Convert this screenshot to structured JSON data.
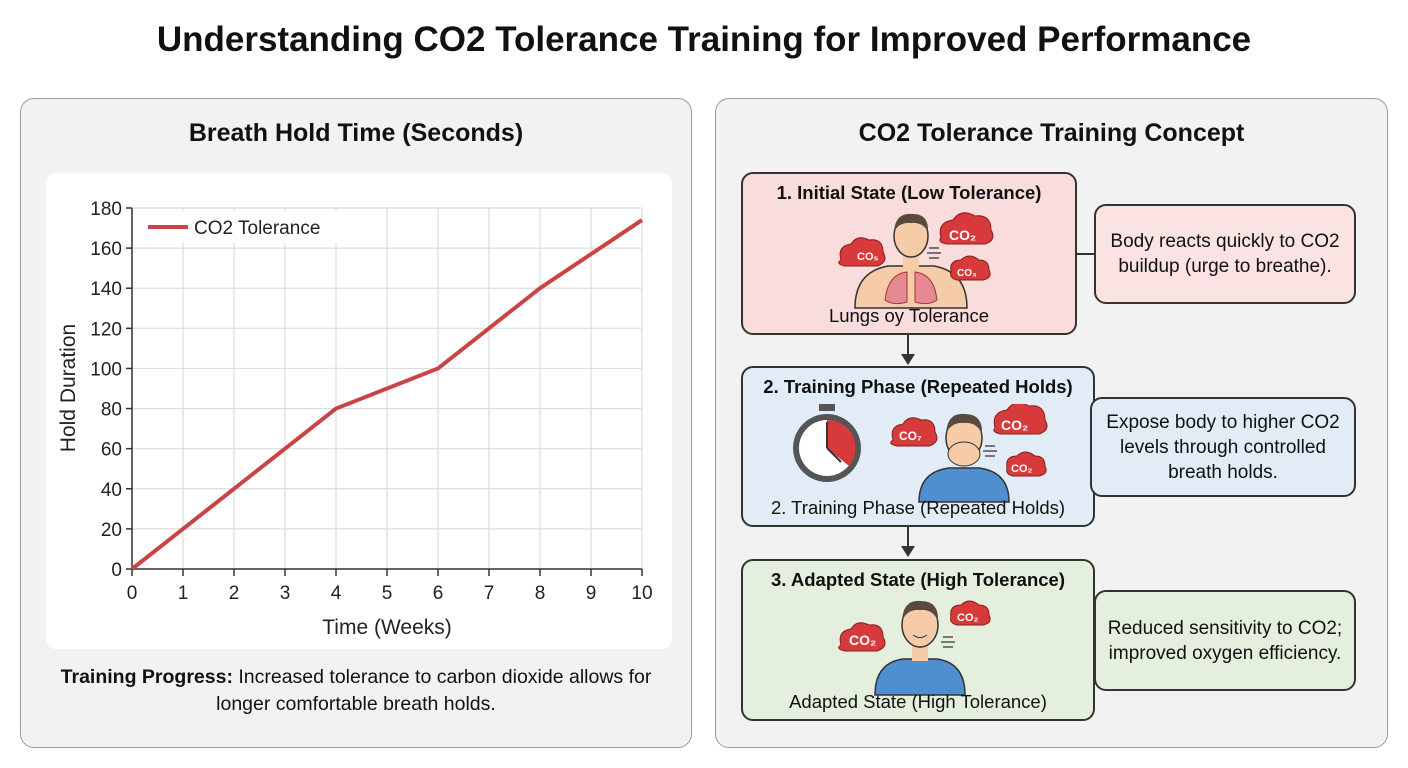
{
  "title": "Understanding CO2 Tolerance Training for Improved Performance",
  "left_panel": {
    "title": "Breath Hold Time (Seconds)",
    "caption_bold": "Training Progress:",
    "caption_text": " Increased tolerance to carbon dioxide allows for longer comfortable breath holds."
  },
  "chart_data": {
    "type": "line",
    "title": "Breath Hold Time (Seconds)",
    "xlabel": "Time (Weeks)",
    "ylabel": "Hold Duration",
    "xlim": [
      0,
      10
    ],
    "ylim": [
      0,
      180
    ],
    "xticks": [
      0,
      1,
      2,
      3,
      4,
      5,
      6,
      7,
      8,
      9,
      10
    ],
    "yticks": [
      0,
      20,
      40,
      60,
      80,
      100,
      120,
      140,
      160,
      180
    ],
    "grid": true,
    "legend": "top-left",
    "series": [
      {
        "name": "CO2 Tolerance",
        "color": "#c94444",
        "x": [
          0,
          1,
          2,
          3,
          4,
          5,
          6,
          7,
          8,
          9,
          10
        ],
        "y": [
          0,
          20,
          40,
          60,
          80,
          90,
          100,
          120,
          140,
          157,
          174
        ]
      }
    ]
  },
  "right_panel": {
    "title": "CO2 Tolerance Training Concept",
    "stages": [
      {
        "title": "1. Initial State (Low Tolerance)",
        "subtitle": "Lungs oy Tolerance",
        "description": "Body reacts quickly to CO2 buildup (urge to breathe).",
        "color": "#f9dcdc",
        "clouds": [
          "CO₅",
          "CO₂",
          "CO₃"
        ]
      },
      {
        "title": "2. Training Phase (Repeated Holds)",
        "subtitle": "2. Training Phase (Repeated Holds)",
        "description": "Expose body to higher CO2 levels through controlled breath holds.",
        "color": "#e2ecf7",
        "clouds": [
          "CO₇",
          "CO₂",
          "CO₂"
        ]
      },
      {
        "title": "3. Adapted State (High Tolerance)",
        "subtitle": "Adapted State (High Tolerance)",
        "description": "Reduced sensitivity to CO2; improved oxygen efficiency.",
        "color": "#e4f0dd",
        "clouds": [
          "CO₂",
          "CO₂"
        ]
      }
    ]
  },
  "colors": {
    "cloud": "#d63a3a",
    "shirt": "#4f8fd0",
    "skin": "#f5cba8",
    "hair": "#5a4a3e"
  }
}
